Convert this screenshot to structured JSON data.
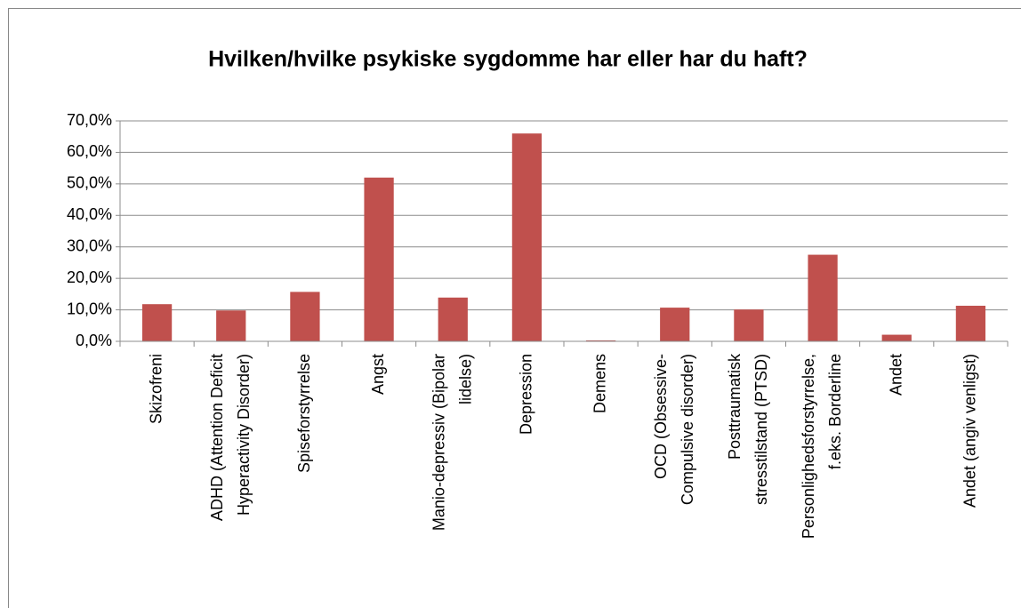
{
  "chart_data": {
    "type": "bar",
    "title": "Hvilken/hvilke psykiske sygdomme har eller har du haft?",
    "categories": [
      "Skizofreni",
      "ADHD (Attention Deficit\nHyperactivity Disorder)",
      "Spiseforstyrrelse",
      "Angst",
      "Manio-depressiv (Bipolar\nlidelse)",
      "Depression",
      "Demens",
      "OCD (Obsessive-\nCompulsive disorder)",
      "Posttraumatisk\nstresstilstand (PTSD)",
      "Personlighedsforstyrrelse,\nf.eks. Borderline",
      "Andet",
      "Andet (angiv venligst)"
    ],
    "values": [
      11.8,
      9.8,
      15.7,
      52.0,
      13.9,
      66.0,
      0.3,
      10.7,
      10.1,
      27.5,
      2.1,
      11.3
    ],
    "color": "#c0504d",
    "ylim": [
      0,
      70
    ],
    "yticks": [
      {
        "value": 0,
        "label": "0,0%"
      },
      {
        "value": 10,
        "label": "10,0%"
      },
      {
        "value": 20,
        "label": "20,0%"
      },
      {
        "value": 30,
        "label": "30,0%"
      },
      {
        "value": 40,
        "label": "40,0%"
      },
      {
        "value": 50,
        "label": "50,0%"
      },
      {
        "value": 60,
        "label": "60,0%"
      },
      {
        "value": 70,
        "label": "70,0%"
      }
    ],
    "grid": true
  }
}
